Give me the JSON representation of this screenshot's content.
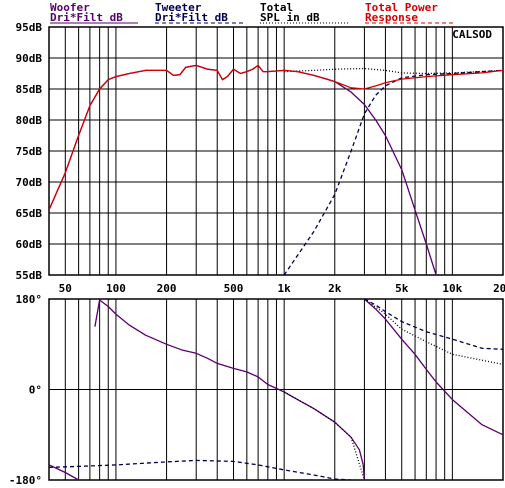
{
  "legend": {
    "woofer": {
      "line1": "Woofer",
      "line2": "Dri*Filt dB",
      "color": "#5a006e"
    },
    "tweeter": {
      "line1": "Tweeter",
      "line2": "Dri*Filt dB",
      "color": "#000050"
    },
    "total": {
      "line1": "Total",
      "line2": "SPL in dB",
      "color": "#000000"
    },
    "power": {
      "line1": "Total Power",
      "line2": "Response",
      "color": "#d40000"
    }
  },
  "chart_data": [
    {
      "type": "line",
      "name": "magnitude",
      "xscale": "log",
      "xlim": [
        40,
        20000
      ],
      "ylim": [
        55,
        95
      ],
      "annotation": "CALSOD",
      "y_tick_labels": [
        "95dB",
        "90dB",
        "85dB",
        "80dB",
        "75dB",
        "70dB",
        "65dB",
        "60dB",
        "55dB"
      ],
      "y_ticks": [
        95,
        90,
        85,
        80,
        75,
        70,
        65,
        60,
        55
      ],
      "x_tick_labels": [
        "50",
        "100",
        "200",
        "500",
        "1k",
        "2k",
        "5k",
        "10k",
        "20k"
      ],
      "x_ticks": [
        50,
        100,
        200,
        500,
        1000,
        2000,
        5000,
        10000,
        20000
      ],
      "series": [
        {
          "key": "woofer",
          "color": "#5a006e",
          "dash": "solid",
          "points": [
            [
              40,
              65.5
            ],
            [
              50,
              71.5
            ],
            [
              60,
              77.5
            ],
            [
              70,
              82.3
            ],
            [
              80,
              85.0
            ],
            [
              90,
              86.5
            ],
            [
              100,
              87.0
            ],
            [
              120,
              87.5
            ],
            [
              150,
              88.0
            ],
            [
              180,
              88.0
            ],
            [
              200,
              88.0
            ],
            [
              220,
              87.2
            ],
            [
              240,
              87.3
            ],
            [
              260,
              88.5
            ],
            [
              300,
              88.8
            ],
            [
              350,
              88.2
            ],
            [
              400,
              88.0
            ],
            [
              430,
              86.5
            ],
            [
              460,
              87.0
            ],
            [
              500,
              88.2
            ],
            [
              550,
              87.5
            ],
            [
              600,
              87.8
            ],
            [
              650,
              88.2
            ],
            [
              700,
              88.8
            ],
            [
              750,
              87.8
            ],
            [
              800,
              87.8
            ],
            [
              1000,
              88.0
            ],
            [
              1200,
              87.8
            ],
            [
              1500,
              87.2
            ],
            [
              1800,
              86.6
            ],
            [
              2000,
              86.2
            ],
            [
              2500,
              84.5
            ],
            [
              3000,
              82.5
            ],
            [
              3500,
              80.0
            ],
            [
              4000,
              77.5
            ],
            [
              5000,
              72.0
            ],
            [
              6000,
              65.5
            ],
            [
              7000,
              60.0
            ],
            [
              8000,
              55.0
            ]
          ]
        },
        {
          "key": "tweeter",
          "color": "#000050",
          "dash": "dashed",
          "points": [
            [
              1000,
              55.0
            ],
            [
              1500,
              62.0
            ],
            [
              2000,
              68.0
            ],
            [
              2500,
              75.0
            ],
            [
              3000,
              81.0
            ],
            [
              3500,
              84.0
            ],
            [
              4000,
              85.5
            ],
            [
              5000,
              86.8
            ],
            [
              7000,
              87.3
            ],
            [
              10000,
              87.5
            ],
            [
              15000,
              87.8
            ],
            [
              20000,
              88.0
            ]
          ]
        },
        {
          "key": "total",
          "color": "#000000",
          "dash": "dotted",
          "points": [
            [
              1000,
              87.8
            ],
            [
              1500,
              88.0
            ],
            [
              2000,
              88.2
            ],
            [
              3000,
              88.3
            ],
            [
              4000,
              88.0
            ],
            [
              5000,
              87.6
            ],
            [
              7000,
              87.5
            ],
            [
              10000,
              87.6
            ],
            [
              20000,
              88.0
            ]
          ]
        },
        {
          "key": "power",
          "color": "#d40000",
          "dash": "solid",
          "points": [
            [
              40,
              65.5
            ],
            [
              50,
              71.5
            ],
            [
              60,
              77.5
            ],
            [
              70,
              82.3
            ],
            [
              80,
              85.0
            ],
            [
              90,
              86.5
            ],
            [
              100,
              87.0
            ],
            [
              120,
              87.5
            ],
            [
              150,
              88.0
            ],
            [
              180,
              88.0
            ],
            [
              200,
              88.0
            ],
            [
              220,
              87.2
            ],
            [
              240,
              87.3
            ],
            [
              260,
              88.5
            ],
            [
              300,
              88.8
            ],
            [
              350,
              88.2
            ],
            [
              400,
              88.0
            ],
            [
              430,
              86.5
            ],
            [
              460,
              87.0
            ],
            [
              500,
              88.2
            ],
            [
              550,
              87.5
            ],
            [
              600,
              87.8
            ],
            [
              650,
              88.2
            ],
            [
              700,
              88.8
            ],
            [
              750,
              87.8
            ],
            [
              800,
              87.8
            ],
            [
              1000,
              88.0
            ],
            [
              1200,
              87.8
            ],
            [
              1500,
              87.2
            ],
            [
              2000,
              86.2
            ],
            [
              2500,
              85.2
            ],
            [
              3000,
              85.0
            ],
            [
              3500,
              85.5
            ],
            [
              4000,
              86.0
            ],
            [
              5000,
              86.6
            ],
            [
              7000,
              87.0
            ],
            [
              10000,
              87.3
            ],
            [
              15000,
              87.6
            ],
            [
              20000,
              88.0
            ]
          ]
        }
      ]
    },
    {
      "type": "line",
      "name": "phase",
      "xscale": "log",
      "xlim": [
        40,
        20000
      ],
      "ylim": [
        -180,
        180
      ],
      "y_tick_labels": [
        "180°",
        "0°",
        "-180°"
      ],
      "y_ticks": [
        180,
        0,
        -180
      ],
      "series": [
        {
          "key": "woofer",
          "color": "#5a006e",
          "dash": "solid",
          "segments": [
            [
              [
                40,
                -150
              ],
              [
                50,
                -165
              ],
              [
                60,
                -180
              ],
              [
                70,
                -205
              ],
              [
                75,
                -235
              ]
            ],
            [
              [
                75,
                125
              ],
              [
                80,
                178
              ],
              [
                90,
                165
              ],
              [
                100,
                150
              ],
              [
                120,
                128
              ],
              [
                150,
                108
              ],
              [
                200,
                90
              ],
              [
                250,
                78
              ],
              [
                300,
                72
              ],
              [
                350,
                62
              ],
              [
                400,
                52
              ],
              [
                500,
                42
              ],
              [
                600,
                35
              ],
              [
                700,
                25
              ],
              [
                800,
                10
              ],
              [
                1000,
                -5
              ],
              [
                1200,
                -20
              ],
              [
                1500,
                -38
              ],
              [
                2000,
                -65
              ],
              [
                2500,
                -95
              ],
              [
                2800,
                -120
              ],
              [
                2950,
                -150
              ],
              [
                3000,
                -180
              ]
            ],
            [
              [
                3000,
                180
              ],
              [
                3500,
                160
              ],
              [
                4000,
                140
              ],
              [
                5000,
                100
              ],
              [
                6000,
                70
              ],
              [
                7000,
                40
              ],
              [
                8000,
                15
              ],
              [
                10000,
                -20
              ],
              [
                15000,
                -70
              ],
              [
                20000,
                -90
              ]
            ]
          ]
        },
        {
          "key": "tweeter",
          "color": "#000050",
          "dash": "dashed",
          "segments": [
            [
              [
                40,
                -155
              ],
              [
                60,
                -153
              ],
              [
                100,
                -150
              ],
              [
                200,
                -144
              ],
              [
                300,
                -141
              ],
              [
                500,
                -143
              ],
              [
                700,
                -150
              ],
              [
                1000,
                -160
              ],
              [
                1500,
                -170
              ],
              [
                2000,
                -178
              ],
              [
                2500,
                -180
              ],
              [
                3000,
                -182
              ]
            ],
            [
              [
                3000,
                180
              ],
              [
                3500,
                168
              ],
              [
                4000,
                155
              ],
              [
                5000,
                135
              ],
              [
                7000,
                115
              ],
              [
                10000,
                100
              ],
              [
                15000,
                82
              ],
              [
                20000,
                80
              ]
            ]
          ]
        },
        {
          "key": "total",
          "color": "#000000",
          "dash": "dotted",
          "segments": [
            [
              [
                1000,
                -5
              ],
              [
                1500,
                -38
              ],
              [
                2000,
                -65
              ],
              [
                2500,
                -95
              ],
              [
                3000,
                -180
              ]
            ],
            [
              [
                3000,
                180
              ],
              [
                4000,
                150
              ],
              [
                5000,
                120
              ],
              [
                7000,
                95
              ],
              [
                10000,
                70
              ],
              [
                20000,
                50
              ]
            ]
          ]
        }
      ]
    }
  ]
}
